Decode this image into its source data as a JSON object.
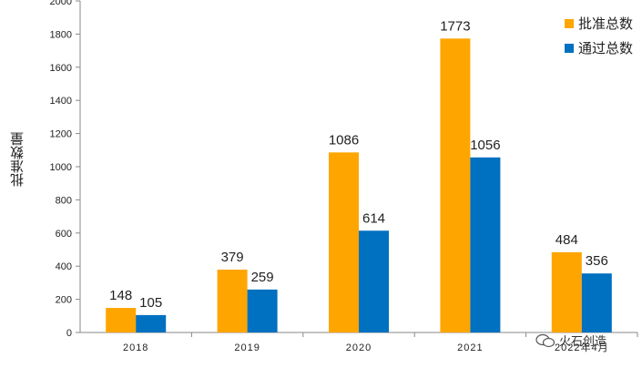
{
  "chart_data": {
    "type": "bar",
    "ylabel": "批准数量",
    "ylim": [
      0,
      2000
    ],
    "yticks": [
      0,
      200,
      400,
      600,
      800,
      1000,
      1200,
      1400,
      1600,
      1800,
      2000
    ],
    "categories": [
      "2018",
      "2019",
      "2020",
      "2021",
      "2022年4月"
    ],
    "series": [
      {
        "name": "批准总数",
        "color": "#FFA500",
        "values": [
          148,
          379,
          1086,
          1773,
          484
        ]
      },
      {
        "name": "通过总数",
        "color": "#0070C0",
        "values": [
          105,
          259,
          614,
          1056,
          356
        ]
      }
    ],
    "legend": "top-right",
    "grid": false
  },
  "watermark": {
    "text": "火石创造"
  }
}
